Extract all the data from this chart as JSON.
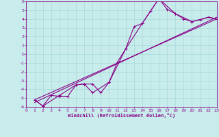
{
  "xlabel": "Windchill (Refroidissement éolien,°C)",
  "bg_color": "#c8ecec",
  "line_color": "#880088",
  "grid_color": "#a8d8d8",
  "xmin": 0,
  "xmax": 23,
  "ymin": -6,
  "ymax": 6,
  "series1_x": [
    1,
    2,
    3,
    4,
    5,
    6,
    7,
    8,
    9,
    10,
    11,
    12,
    13,
    14,
    15,
    16,
    17,
    18,
    19,
    20,
    21,
    22,
    23
  ],
  "series1_y": [
    -5.2,
    -5.9,
    -4.7,
    -4.8,
    -4.8,
    -3.5,
    -3.4,
    -3.4,
    -4.4,
    -3.2,
    -0.9,
    0.6,
    3.1,
    3.5,
    4.9,
    6.3,
    5.1,
    4.6,
    4.0,
    3.7,
    3.9,
    4.2,
    4.0
  ],
  "series2_x": [
    1,
    2,
    4,
    6,
    7,
    8,
    10,
    12,
    14,
    16,
    18,
    20,
    22,
    23
  ],
  "series2_y": [
    -5.2,
    -5.9,
    -4.7,
    -3.5,
    -3.4,
    -4.4,
    -3.2,
    0.6,
    3.5,
    6.3,
    4.6,
    3.7,
    4.2,
    4.0
  ],
  "series3_x": [
    1,
    23
  ],
  "series3_y": [
    -5.2,
    4.0
  ],
  "series4_x": [
    1,
    23
  ],
  "series4_y": [
    -5.5,
    4.2
  ]
}
